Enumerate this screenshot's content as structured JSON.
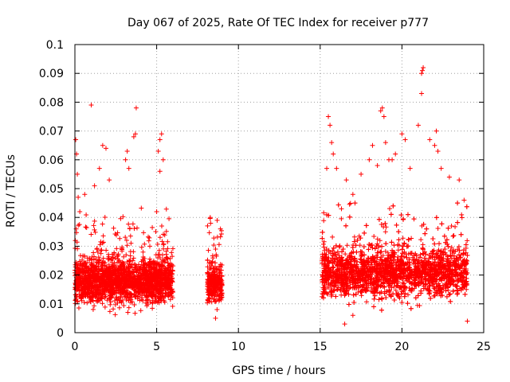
{
  "chart_data": {
    "type": "scatter",
    "title": "Day 067 of 2025, Rate Of TEC Index for receiver p777",
    "xlabel": "GPS time / hours",
    "ylabel": "ROTI / TECUs",
    "xlim": [
      0,
      25
    ],
    "ylim": [
      0,
      0.1
    ],
    "x_ticks": [
      "0",
      "5",
      "10",
      "15",
      "20",
      "25"
    ],
    "y_ticks": [
      "0",
      "0.01",
      "0.02",
      "0.03",
      "0.04",
      "0.05",
      "0.06",
      "0.07",
      "0.08",
      "0.09",
      "0.1"
    ],
    "grid": true,
    "marker": "+",
    "color": "#ff0000",
    "series": [
      {
        "segments": [
          {
            "x_range": [
              0.0,
              6.0
            ],
            "typical": 0.018,
            "spread": 0.008
          },
          {
            "x_range": [
              8.1,
              9.0
            ],
            "typical": 0.017,
            "spread": 0.007
          },
          {
            "x_range": [
              15.1,
              24.0
            ],
            "typical": 0.021,
            "spread": 0.009
          }
        ],
        "values": [
          [
            0.05,
            0.067
          ],
          [
            0.1,
            0.062
          ],
          [
            0.15,
            0.055
          ],
          [
            0.2,
            0.047
          ],
          [
            0.3,
            0.042
          ],
          [
            0.6,
            0.048
          ],
          [
            1.0,
            0.079
          ],
          [
            1.2,
            0.051
          ],
          [
            1.5,
            0.057
          ],
          [
            1.7,
            0.065
          ],
          [
            1.9,
            0.064
          ],
          [
            2.1,
            0.053
          ],
          [
            3.1,
            0.06
          ],
          [
            3.2,
            0.063
          ],
          [
            3.3,
            0.057
          ],
          [
            3.6,
            0.068
          ],
          [
            3.7,
            0.069
          ],
          [
            3.75,
            0.078
          ],
          [
            5.2,
            0.067
          ],
          [
            5.3,
            0.069
          ],
          [
            5.1,
            0.063
          ],
          [
            5.4,
            0.06
          ],
          [
            5.2,
            0.056
          ],
          [
            5.0,
            0.042
          ],
          [
            8.3,
            0.038
          ],
          [
            8.7,
            0.039
          ],
          [
            8.9,
            0.036
          ],
          [
            8.6,
            0.005
          ],
          [
            15.5,
            0.075
          ],
          [
            15.6,
            0.072
          ],
          [
            15.7,
            0.066
          ],
          [
            15.4,
            0.057
          ],
          [
            15.8,
            0.062
          ],
          [
            16.0,
            0.057
          ],
          [
            16.3,
            0.043
          ],
          [
            16.6,
            0.053
          ],
          [
            17.0,
            0.048
          ],
          [
            17.5,
            0.055
          ],
          [
            18.0,
            0.06
          ],
          [
            18.2,
            0.065
          ],
          [
            18.5,
            0.058
          ],
          [
            18.7,
            0.077
          ],
          [
            18.8,
            0.078
          ],
          [
            18.9,
            0.075
          ],
          [
            19.0,
            0.066
          ],
          [
            19.2,
            0.06
          ],
          [
            19.4,
            0.06
          ],
          [
            19.6,
            0.062
          ],
          [
            20.0,
            0.069
          ],
          [
            20.2,
            0.067
          ],
          [
            20.5,
            0.057
          ],
          [
            21.0,
            0.072
          ],
          [
            21.2,
            0.083
          ],
          [
            21.2,
            0.09
          ],
          [
            21.3,
            0.092
          ],
          [
            21.25,
            0.091
          ],
          [
            21.7,
            0.067
          ],
          [
            22.0,
            0.065
          ],
          [
            22.1,
            0.07
          ],
          [
            22.2,
            0.063
          ],
          [
            22.4,
            0.057
          ],
          [
            22.9,
            0.054
          ],
          [
            23.5,
            0.053
          ],
          [
            23.8,
            0.046
          ],
          [
            16.5,
            0.003
          ],
          [
            17.0,
            0.006
          ],
          [
            24.0,
            0.004
          ]
        ]
      }
    ]
  }
}
